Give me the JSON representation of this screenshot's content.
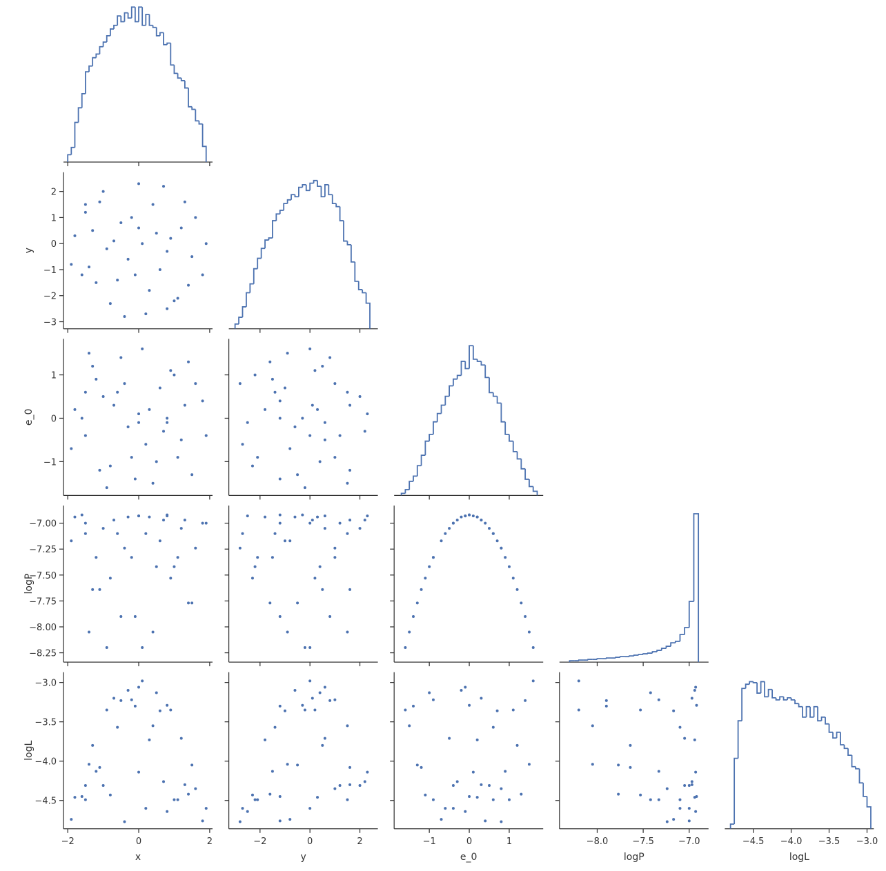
{
  "chart_data": {
    "type": "pairplot",
    "corner": true,
    "color": "#4c72b0",
    "variables": [
      {
        "name": "x",
        "xlim": [
          -2.12,
          2.08
        ],
        "xticks": [
          {
            "value": -2,
            "label": "−2"
          },
          0,
          2
        ],
        "values": [
          -1.8,
          -1.5,
          -1.2,
          -1.0,
          -0.8,
          -0.5,
          -0.3,
          0.0,
          0.2,
          0.4,
          0.6,
          0.9,
          1.1,
          1.3,
          1.5,
          1.8,
          -1.9,
          -1.6,
          -1.3,
          -0.9,
          -0.6,
          -0.2,
          0.1,
          0.3,
          0.7,
          1.0,
          1.2,
          1.6,
          0.8,
          -1.4,
          -1.1,
          -0.7,
          -0.4,
          0.5,
          0.8,
          1.4,
          -0.1,
          0.0,
          -1.5,
          1.9
        ],
        "hist": {
          "ylim": [
            0,
            300
          ],
          "bins": [
            -2.0,
            -1.9,
            -1.8,
            -1.7,
            -1.6,
            -1.5,
            -1.4,
            -1.3,
            -1.2,
            -1.1,
            -1.0,
            -0.9,
            -0.8,
            -0.7,
            -0.6,
            -0.5,
            -0.4,
            -0.3,
            -0.2,
            -0.1,
            0.0,
            0.1,
            0.2,
            0.3,
            0.4,
            0.5,
            0.6,
            0.7,
            0.8,
            0.9,
            1.0,
            1.1,
            1.2,
            1.3,
            1.4,
            1.5,
            1.6,
            1.7,
            1.8,
            1.9
          ],
          "counts": [
            14,
            28,
            76,
            104,
            131,
            173,
            184,
            200,
            207,
            221,
            230,
            242,
            255,
            262,
            280,
            269,
            286,
            276,
            297,
            269,
            297,
            262,
            283,
            262,
            258,
            242,
            248,
            225,
            228,
            186,
            170,
            161,
            156,
            142,
            106,
            101,
            79,
            73,
            30
          ]
        }
      },
      {
        "name": "y",
        "xlim": [
          -3.25,
          2.72
        ],
        "ylim": [
          -3.27,
          2.74
        ],
        "xticks": [
          {
            "value": -2,
            "label": "−2"
          },
          0,
          2
        ],
        "yticks": [
          {
            "value": -3,
            "label": "−3"
          },
          {
            "value": -2,
            "label": "−2"
          },
          {
            "value": -1,
            "label": "−1"
          },
          0,
          1,
          2
        ],
        "values": [
          0.3,
          1.2,
          -1.5,
          2.0,
          -2.3,
          0.8,
          -0.6,
          2.3,
          -2.7,
          1.5,
          -1.0,
          0.2,
          -2.1,
          1.6,
          -0.5,
          -1.2,
          -0.8,
          -1.2,
          0.5,
          -0.2,
          -1.4,
          1.0,
          0.0,
          -1.8,
          2.2,
          -2.2,
          0.6,
          1.0,
          -2.5,
          -0.9,
          1.6,
          0.1,
          -2.8,
          0.4,
          -0.3,
          -1.6,
          -1.2,
          0.6,
          1.5,
          0.0
        ],
        "hist": {
          "ylim": [
            0,
            300
          ],
          "bins": [
            -3.0,
            -2.85,
            -2.7,
            -2.55,
            -2.4,
            -2.25,
            -2.1,
            -1.95,
            -1.8,
            -1.65,
            -1.5,
            -1.35,
            -1.2,
            -1.05,
            -0.9,
            -0.75,
            -0.6,
            -0.45,
            -0.3,
            -0.15,
            0.0,
            0.15,
            0.3,
            0.45,
            0.6,
            0.75,
            0.9,
            1.05,
            1.2,
            1.35,
            1.5,
            1.65,
            1.8,
            1.95,
            2.1,
            2.25,
            2.4
          ],
          "counts": [
            9,
            22,
            42,
            69,
            86,
            115,
            135,
            154,
            170,
            174,
            207,
            220,
            227,
            240,
            247,
            257,
            253,
            271,
            276,
            265,
            279,
            284,
            273,
            253,
            276,
            257,
            240,
            234,
            207,
            168,
            161,
            128,
            91,
            75,
            69,
            49
          ]
        }
      },
      {
        "name": "e_0",
        "xlim": [
          -1.88,
          1.85
        ],
        "ylim": [
          -1.78,
          1.83
        ],
        "xticks": [
          {
            "value": -1,
            "label": "−1"
          },
          0,
          1
        ],
        "yticks": [
          {
            "value": -1,
            "label": "−1"
          },
          0,
          1
        ],
        "values": [
          0.2,
          -0.4,
          0.9,
          0.5,
          -1.1,
          1.4,
          -0.2,
          0.1,
          -0.6,
          -1.5,
          0.7,
          1.1,
          -0.9,
          0.3,
          -1.3,
          0.4,
          -0.7,
          0.0,
          1.2,
          -1.6,
          0.6,
          -0.9,
          1.6,
          0.2,
          -0.3,
          1.0,
          -0.5,
          0.8,
          -0.1,
          1.5,
          -1.2,
          0.3,
          0.8,
          -1.0,
          0.0,
          1.3,
          -1.4,
          -0.1,
          0.6,
          -0.4
        ],
        "hist": {
          "ylim": [
            0,
            300
          ],
          "bins": [
            -1.7,
            -1.6,
            -1.5,
            -1.4,
            -1.3,
            -1.2,
            -1.1,
            -1.0,
            -0.9,
            -0.8,
            -0.7,
            -0.6,
            -0.5,
            -0.4,
            -0.3,
            -0.2,
            -0.1,
            0.0,
            0.1,
            0.2,
            0.3,
            0.4,
            0.5,
            0.6,
            0.7,
            0.8,
            0.9,
            1.0,
            1.1,
            1.2,
            1.3,
            1.4,
            1.5,
            1.6,
            1.7
          ],
          "counts": [
            4,
            11,
            27,
            37,
            57,
            77,
            104,
            117,
            141,
            157,
            173,
            190,
            210,
            223,
            230,
            257,
            243,
            287,
            261,
            257,
            250,
            226,
            197,
            190,
            177,
            141,
            117,
            104,
            84,
            70,
            51,
            31,
            17,
            8
          ]
        }
      },
      {
        "name": "logP",
        "xlim": [
          -8.41,
          -6.79
        ],
        "ylim": [
          -8.34,
          -6.83
        ],
        "xticks": [
          {
            "value": -8.0,
            "label": "−8.0"
          },
          {
            "value": -7.5,
            "label": "−7.5"
          },
          {
            "value": -7.0,
            "label": "−7.0"
          }
        ],
        "yticks": [
          {
            "value": -8.25,
            "label": "−8.25"
          },
          {
            "value": -8.0,
            "label": "−8.00"
          },
          {
            "value": -7.75,
            "label": "−7.75"
          },
          {
            "value": -7.5,
            "label": "−7.50"
          },
          {
            "value": -7.25,
            "label": "−7.25"
          },
          {
            "value": -7.0,
            "label": "−7.00"
          }
        ],
        "values": [
          -6.94,
          -7.0,
          -7.33,
          -7.05,
          -7.53,
          -7.9,
          -6.94,
          -6.93,
          -7.1,
          -8.05,
          -7.17,
          -7.53,
          -7.33,
          -6.97,
          -7.77,
          -7.0,
          -7.17,
          -6.92,
          -7.64,
          -8.2,
          -7.1,
          -7.33,
          -8.2,
          -6.94,
          -6.97,
          -7.42,
          -7.05,
          -7.24,
          -6.93,
          -8.05,
          -7.64,
          -6.97,
          -7.24,
          -7.42,
          -6.92,
          -7.77,
          -7.9,
          -6.93,
          -7.1,
          -7.0
        ],
        "hist": {
          "ylim": [
            0,
            1600
          ],
          "bins": [
            -8.3,
            -8.25,
            -8.2,
            -8.15,
            -8.1,
            -8.05,
            -8.0,
            -7.95,
            -7.9,
            -7.85,
            -7.8,
            -7.75,
            -7.7,
            -7.65,
            -7.6,
            -7.55,
            -7.5,
            -7.45,
            -7.4,
            -7.35,
            -7.3,
            -7.25,
            -7.2,
            -7.15,
            -7.1,
            -7.05,
            -7.0,
            -6.95,
            -6.9
          ],
          "counts": [
            14,
            14,
            21,
            21,
            28,
            28,
            35,
            35,
            42,
            42,
            49,
            56,
            56,
            63,
            71,
            78,
            85,
            92,
            106,
            120,
            141,
            162,
            197,
            212,
            282,
            353,
            620,
            1516
          ]
        }
      },
      {
        "name": "logL",
        "xlim": [
          -4.875,
          -2.91
        ],
        "ylim": [
          -4.86,
          -2.87
        ],
        "xticks": [
          {
            "value": -4.5,
            "label": "−4.5"
          },
          {
            "value": -4.0,
            "label": "−4.0"
          },
          {
            "value": -3.5,
            "label": "−3.5"
          },
          {
            "value": -3.0,
            "label": "−3.0"
          }
        ],
        "yticks": [
          {
            "value": -4.5,
            "label": "−4.5"
          },
          {
            "value": -4.0,
            "label": "−4.0"
          },
          {
            "value": -3.5,
            "label": "−3.5"
          },
          {
            "value": -3.0,
            "label": "−3.0"
          }
        ],
        "values": [
          -4.46,
          -4.31,
          -4.13,
          -4.31,
          -4.43,
          -3.23,
          -3.1,
          -4.14,
          -4.6,
          -3.55,
          -3.36,
          -3.35,
          -4.49,
          -4.3,
          -4.05,
          -4.76,
          -4.74,
          -4.45,
          -3.8,
          -3.35,
          -3.57,
          -3.22,
          -2.98,
          -3.73,
          -4.26,
          -4.49,
          -3.71,
          -4.35,
          -4.64,
          -4.04,
          -4.08,
          -3.2,
          -4.77,
          -3.13,
          -3.29,
          -4.42,
          -3.3,
          -3.06,
          -4.49,
          -4.6
        ],
        "hist": {
          "ylim": [
            0,
            300
          ],
          "bins": [
            -4.8,
            -4.75,
            -4.7,
            -4.65,
            -4.6,
            -4.55,
            -4.5,
            -4.45,
            -4.4,
            -4.35,
            -4.3,
            -4.25,
            -4.2,
            -4.15,
            -4.1,
            -4.05,
            -4.0,
            -3.95,
            -3.9,
            -3.85,
            -3.8,
            -3.75,
            -3.7,
            -3.65,
            -3.6,
            -3.55,
            -3.5,
            -3.45,
            -3.4,
            -3.35,
            -3.3,
            -3.25,
            -3.2,
            -3.15,
            -3.1,
            -3.05,
            -3.0,
            -2.95
          ],
          "counts": [
            9,
            135,
            207,
            269,
            277,
            282,
            280,
            260,
            282,
            253,
            267,
            251,
            247,
            253,
            247,
            251,
            247,
            240,
            234,
            214,
            234,
            214,
            234,
            207,
            214,
            201,
            185,
            174,
            185,
            161,
            154,
            141,
            119,
            115,
            88,
            62,
            42
          ]
        }
      }
    ]
  }
}
